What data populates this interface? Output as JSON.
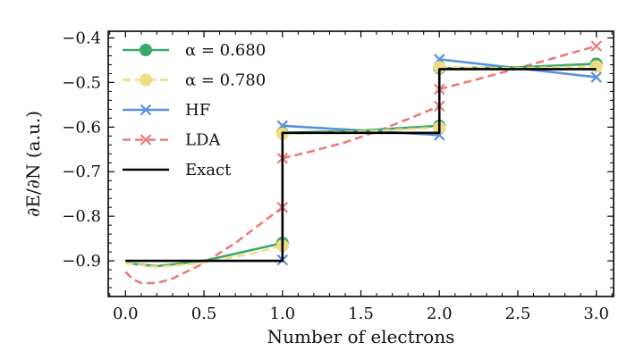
{
  "chart_data": {
    "type": "line",
    "xlabel": "Number of electrons",
    "ylabel": "∂E/∂N (a.u.)",
    "xlim": [
      -0.11,
      3.11
    ],
    "ylim": [
      -0.98,
      -0.385
    ],
    "xticks": [
      0.0,
      0.5,
      1.0,
      1.5,
      2.0,
      2.5,
      3.0
    ],
    "xtick_labels": [
      "0.0",
      "0.5",
      "1.0",
      "1.5",
      "2.0",
      "2.5",
      "3.0"
    ],
    "yticks": [
      -0.9,
      -0.8,
      -0.7,
      -0.6,
      -0.5,
      -0.4
    ],
    "ytick_labels": [
      "−0.9",
      "−0.8",
      "−0.7",
      "−0.6",
      "−0.5",
      "−0.4"
    ],
    "legend_position": "top-left",
    "grid": false,
    "series": [
      {
        "name": "α = 0.680",
        "color": "#3aa86b",
        "style": "solid",
        "marker": "circle",
        "segments": [
          {
            "x": [
              0.0,
              0.2,
              0.5,
              0.8,
              1.0
            ],
            "y": [
              -0.905,
              -0.912,
              -0.9,
              -0.876,
              -0.86
            ]
          },
          {
            "x": [
              1.0,
              1.5,
              2.0
            ],
            "y": [
              -0.613,
              -0.608,
              -0.597
            ]
          },
          {
            "x": [
              2.0,
              2.5,
              3.0
            ],
            "y": [
              -0.468,
              -0.466,
              -0.458
            ]
          }
        ],
        "markers": {
          "x": [
            1.0,
            1.0,
            2.0,
            2.0,
            3.0
          ],
          "y": [
            -0.86,
            -0.613,
            -0.597,
            -0.468,
            -0.458
          ]
        }
      },
      {
        "name": "α = 0.780",
        "color": "#f0dc82",
        "style": "dashed",
        "marker": "circle",
        "segments": [
          {
            "x": [
              0.0,
              0.2,
              0.5,
              0.8,
              1.0
            ],
            "y": [
              -0.905,
              -0.914,
              -0.904,
              -0.884,
              -0.866
            ]
          },
          {
            "x": [
              1.0,
              1.5,
              2.0
            ],
            "y": [
              -0.615,
              -0.61,
              -0.601
            ]
          },
          {
            "x": [
              2.0,
              2.5,
              3.0
            ],
            "y": [
              -0.466,
              -0.468,
              -0.464
            ]
          }
        ],
        "markers": {
          "x": [
            1.0,
            1.0,
            2.0,
            2.0,
            3.0
          ],
          "y": [
            -0.866,
            -0.615,
            -0.601,
            -0.466,
            -0.464
          ]
        }
      },
      {
        "name": "HF",
        "color": "#5b8fe0",
        "style": "solid",
        "marker": "x",
        "segments": [
          {
            "x": [
              1.0,
              2.0
            ],
            "y": [
              -0.597,
              -0.618
            ]
          },
          {
            "x": [
              2.0,
              2.5,
              3.0
            ],
            "y": [
              -0.448,
              -0.468,
              -0.488
            ]
          }
        ],
        "markers": {
          "x": [
            1.0,
            1.0,
            2.0,
            2.0,
            3.0
          ],
          "y": [
            -0.898,
            -0.597,
            -0.618,
            -0.448,
            -0.488
          ]
        }
      },
      {
        "name": "LDA",
        "color": "#ec7a7a",
        "style": "dashed",
        "marker": "x",
        "segments": [
          {
            "x": [
              0.0,
              0.05,
              0.1,
              0.2,
              0.3,
              0.5,
              0.7,
              0.85,
              1.0
            ],
            "y": [
              -0.925,
              -0.942,
              -0.95,
              -0.95,
              -0.94,
              -0.905,
              -0.86,
              -0.82,
              -0.78
            ]
          },
          {
            "x": [
              1.0,
              1.2,
              1.4,
              1.6,
              1.8,
              2.0
            ],
            "y": [
              -0.67,
              -0.653,
              -0.634,
              -0.61,
              -0.582,
              -0.553
            ]
          },
          {
            "x": [
              2.0,
              2.25,
              2.5,
              2.75,
              3.0
            ],
            "y": [
              -0.515,
              -0.492,
              -0.468,
              -0.443,
              -0.418
            ]
          }
        ],
        "markers": {
          "x": [
            1.0,
            1.0,
            2.0,
            2.0,
            3.0
          ],
          "y": [
            -0.78,
            -0.67,
            -0.553,
            -0.515,
            -0.418
          ]
        }
      },
      {
        "name": "Exact",
        "color": "#000000",
        "style": "solid",
        "marker": "none",
        "segments": [
          {
            "x": [
              0.0,
              1.0,
              1.0,
              2.0,
              2.0,
              3.0
            ],
            "y": [
              -0.9,
              -0.9,
              -0.613,
              -0.613,
              -0.47,
              -0.47
            ]
          }
        ],
        "markers": {
          "x": [],
          "y": []
        }
      }
    ]
  }
}
